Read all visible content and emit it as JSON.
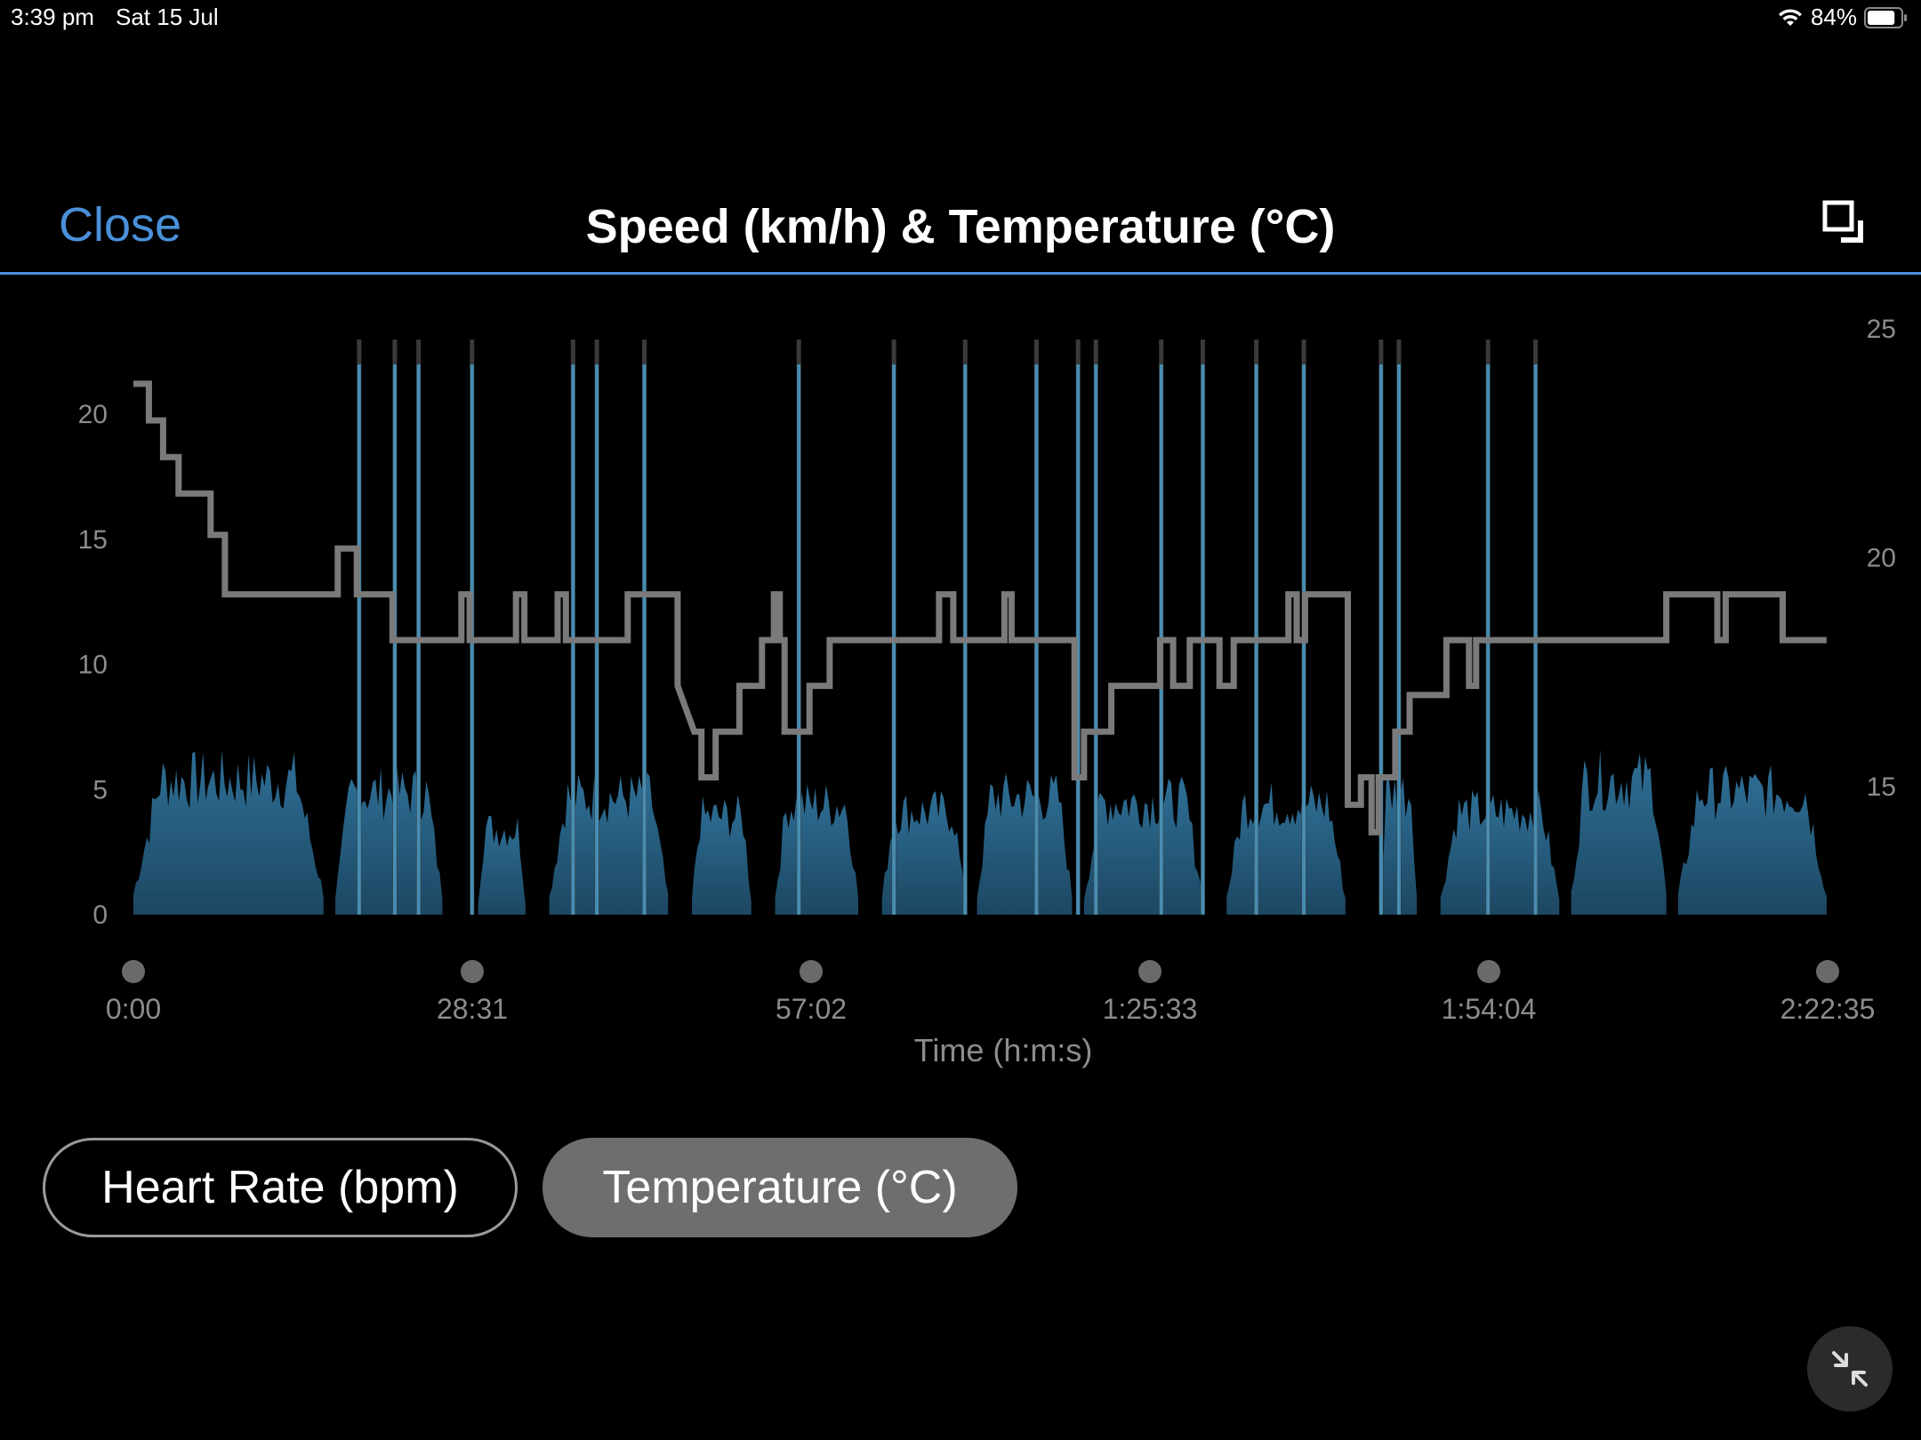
{
  "status_bar": {
    "time": "3:39 pm",
    "date": "Sat 15 Jul",
    "battery": "84%",
    "battery_level": 0.84
  },
  "nav": {
    "close_label": "Close",
    "title": "Speed (km/h) & Temperature (°C)"
  },
  "chart_data": {
    "type": "area",
    "xlabel": "Time (h:m:s)",
    "x_tick_labels": [
      "0:00",
      "28:31",
      "57:02",
      "1:25:33",
      "1:54:04",
      "2:22:35"
    ],
    "left_axis": {
      "ticks": [
        "0",
        "5",
        "10",
        "15",
        "20"
      ],
      "range": [
        0,
        20
      ],
      "unit": "km/h"
    },
    "right_axis": {
      "ticks": [
        "15",
        "20",
        "25"
      ],
      "range": [
        12.2,
        25
      ],
      "unit": "°C"
    },
    "grid": false,
    "colors": {
      "speed": "#2e6f95",
      "speed_spike": "#4a9cc8",
      "temperature": "#7a7a7a",
      "background": "#000000"
    },
    "series": [
      {
        "name": "Speed (km/h)",
        "axis": "left",
        "x_range_minutes": [
          0,
          142.58
        ],
        "blocks": [
          {
            "start_min": 0.0,
            "end_min": 16.0,
            "level": 5.5
          },
          {
            "start_min": 17.0,
            "end_min": 26.0,
            "level": 5.0
          },
          {
            "start_min": 29.0,
            "end_min": 33.0,
            "level": 3.5
          },
          {
            "start_min": 35.0,
            "end_min": 45.0,
            "level": 4.8
          },
          {
            "start_min": 47.0,
            "end_min": 52.0,
            "level": 4.0
          },
          {
            "start_min": 54.0,
            "end_min": 61.0,
            "level": 4.5
          },
          {
            "start_min": 63.0,
            "end_min": 70.0,
            "level": 4.2
          },
          {
            "start_min": 71.0,
            "end_min": 79.0,
            "level": 4.8
          },
          {
            "start_min": 80.0,
            "end_min": 90.0,
            "level": 4.6
          },
          {
            "start_min": 92.0,
            "end_min": 102.0,
            "level": 4.5
          },
          {
            "start_min": 105.0,
            "end_min": 108.0,
            "level": 5.0
          },
          {
            "start_min": 110.0,
            "end_min": 120.0,
            "level": 4.2
          },
          {
            "start_min": 121.0,
            "end_min": 129.0,
            "level": 5.5
          },
          {
            "start_min": 130.0,
            "end_min": 142.5,
            "level": 5.0
          }
        ],
        "spikes_min": [
          19.0,
          22.0,
          24.0,
          28.5,
          37.0,
          39.0,
          43.0,
          56.0,
          64.0,
          70.0,
          76.0,
          79.5,
          81.0,
          86.5,
          90.0,
          94.5,
          98.5,
          105.0,
          106.5,
          114.0,
          118.0
        ]
      },
      {
        "name": "Temperature (°C)",
        "axis": "right",
        "points": [
          [
            0.0,
            23.8
          ],
          [
            1.3,
            23.8
          ],
          [
            1.3,
            23.0
          ],
          [
            2.5,
            23.0
          ],
          [
            2.5,
            22.2
          ],
          [
            3.8,
            22.2
          ],
          [
            3.8,
            21.4
          ],
          [
            6.5,
            21.4
          ],
          [
            6.5,
            20.5
          ],
          [
            7.7,
            20.5
          ],
          [
            7.7,
            19.2
          ],
          [
            17.2,
            19.2
          ],
          [
            17.2,
            20.2
          ],
          [
            18.8,
            20.2
          ],
          [
            18.8,
            19.2
          ],
          [
            21.8,
            19.2
          ],
          [
            21.8,
            18.2
          ],
          [
            27.6,
            18.2
          ],
          [
            27.6,
            19.2
          ],
          [
            28.3,
            19.2
          ],
          [
            28.3,
            18.2
          ],
          [
            32.2,
            18.2
          ],
          [
            32.2,
            19.2
          ],
          [
            32.9,
            19.2
          ],
          [
            32.9,
            18.2
          ],
          [
            35.7,
            18.2
          ],
          [
            35.7,
            19.2
          ],
          [
            36.4,
            19.2
          ],
          [
            36.4,
            18.2
          ],
          [
            41.6,
            18.2
          ],
          [
            41.6,
            19.2
          ],
          [
            45.8,
            19.2
          ],
          [
            45.8,
            17.2
          ],
          [
            47.2,
            16.2
          ],
          [
            47.8,
            16.2
          ],
          [
            47.8,
            15.2
          ],
          [
            49.0,
            15.2
          ],
          [
            49.0,
            16.2
          ],
          [
            51.0,
            16.2
          ],
          [
            51.0,
            17.2
          ],
          [
            52.9,
            17.2
          ],
          [
            52.9,
            18.2
          ],
          [
            53.9,
            18.2
          ],
          [
            53.9,
            19.2
          ],
          [
            54.4,
            19.2
          ],
          [
            54.4,
            18.2
          ],
          [
            54.8,
            18.2
          ],
          [
            54.8,
            16.2
          ],
          [
            56.9,
            16.2
          ],
          [
            56.9,
            17.2
          ],
          [
            58.6,
            17.2
          ],
          [
            58.6,
            18.2
          ],
          [
            67.8,
            18.2
          ],
          [
            67.8,
            19.2
          ],
          [
            69.0,
            19.2
          ],
          [
            69.0,
            18.2
          ],
          [
            73.3,
            18.2
          ],
          [
            73.3,
            19.2
          ],
          [
            73.9,
            19.2
          ],
          [
            73.9,
            18.2
          ],
          [
            79.2,
            18.2
          ],
          [
            79.2,
            15.2
          ],
          [
            80.0,
            15.2
          ],
          [
            80.0,
            16.2
          ],
          [
            82.3,
            16.2
          ],
          [
            82.3,
            17.2
          ],
          [
            86.4,
            17.2
          ],
          [
            86.4,
            18.2
          ],
          [
            87.5,
            18.2
          ],
          [
            87.5,
            17.2
          ],
          [
            88.9,
            17.2
          ],
          [
            88.9,
            18.2
          ],
          [
            91.4,
            18.2
          ],
          [
            91.4,
            17.2
          ],
          [
            92.6,
            17.2
          ],
          [
            92.6,
            18.2
          ],
          [
            97.2,
            18.2
          ],
          [
            97.2,
            19.2
          ],
          [
            97.9,
            19.2
          ],
          [
            97.9,
            18.2
          ],
          [
            98.6,
            18.2
          ],
          [
            98.6,
            19.2
          ],
          [
            102.2,
            19.2
          ],
          [
            102.2,
            14.6
          ],
          [
            103.3,
            14.6
          ],
          [
            103.3,
            15.2
          ],
          [
            104.2,
            15.2
          ],
          [
            104.2,
            14.0
          ],
          [
            104.8,
            14.0
          ],
          [
            104.8,
            15.2
          ],
          [
            106.2,
            15.2
          ],
          [
            106.2,
            16.2
          ],
          [
            107.4,
            16.2
          ],
          [
            107.4,
            17.0
          ],
          [
            110.5,
            17.0
          ],
          [
            110.5,
            18.2
          ],
          [
            112.4,
            18.2
          ],
          [
            112.4,
            17.2
          ],
          [
            113.0,
            17.2
          ],
          [
            113.0,
            18.2
          ],
          [
            129.0,
            18.2
          ],
          [
            129.0,
            19.2
          ],
          [
            133.3,
            19.2
          ],
          [
            133.3,
            18.2
          ],
          [
            134.0,
            18.2
          ],
          [
            134.0,
            19.2
          ],
          [
            138.8,
            19.2
          ],
          [
            138.8,
            18.2
          ],
          [
            142.5,
            18.2
          ]
        ]
      }
    ]
  },
  "toggles": {
    "heart_rate_label": "Heart Rate (bpm)",
    "temperature_label": "Temperature (°C)",
    "selected": "temperature"
  },
  "icons": {
    "close": "text-link",
    "expand": "expand-window-icon",
    "collapse": "collapse-arrows-icon",
    "wifi": "wifi-icon",
    "battery": "battery-icon"
  }
}
